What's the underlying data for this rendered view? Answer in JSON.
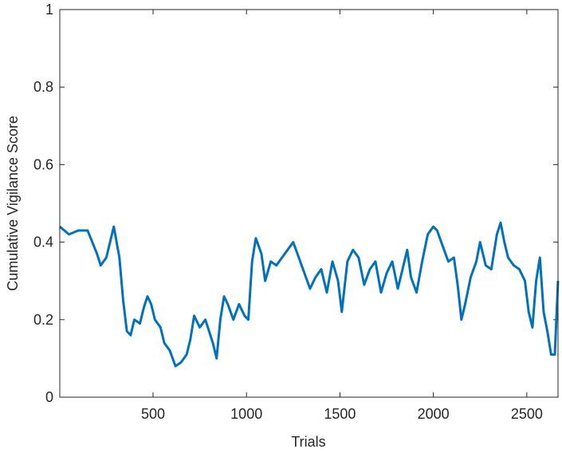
{
  "chart_data": {
    "type": "line",
    "xlabel": "Trials",
    "ylabel": "Cumulative Vigilance Score",
    "xlim": [
      1,
      2667
    ],
    "ylim": [
      0,
      1
    ],
    "xticks": [
      500,
      1000,
      1500,
      2000,
      2500
    ],
    "yticks": [
      0,
      0.2,
      0.4,
      0.6,
      0.8,
      1
    ],
    "grid": false,
    "x": [
      1,
      50,
      100,
      150,
      200,
      220,
      250,
      280,
      290,
      320,
      340,
      360,
      380,
      400,
      430,
      450,
      470,
      490,
      510,
      540,
      560,
      590,
      620,
      650,
      680,
      700,
      720,
      750,
      780,
      820,
      840,
      860,
      880,
      900,
      930,
      960,
      990,
      1010,
      1030,
      1050,
      1080,
      1100,
      1130,
      1160,
      1190,
      1220,
      1250,
      1280,
      1310,
      1340,
      1370,
      1400,
      1430,
      1460,
      1490,
      1510,
      1540,
      1570,
      1600,
      1630,
      1660,
      1690,
      1720,
      1750,
      1780,
      1810,
      1840,
      1860,
      1880,
      1910,
      1940,
      1970,
      2000,
      2020,
      2050,
      2080,
      2110,
      2130,
      2150,
      2170,
      2200,
      2230,
      2250,
      2280,
      2310,
      2340,
      2360,
      2380,
      2400,
      2430,
      2460,
      2490,
      2510,
      2530,
      2550,
      2570,
      2590,
      2610,
      2630,
      2650,
      2667
    ],
    "series": [
      {
        "name": "Cumulative Vigilance Score",
        "color": "#0072BD",
        "values": [
          0.44,
          0.42,
          0.43,
          0.43,
          0.37,
          0.34,
          0.36,
          0.42,
          0.44,
          0.36,
          0.25,
          0.17,
          0.16,
          0.2,
          0.19,
          0.23,
          0.26,
          0.24,
          0.2,
          0.18,
          0.14,
          0.12,
          0.08,
          0.09,
          0.11,
          0.15,
          0.21,
          0.18,
          0.2,
          0.14,
          0.1,
          0.2,
          0.26,
          0.24,
          0.2,
          0.24,
          0.21,
          0.2,
          0.35,
          0.41,
          0.37,
          0.3,
          0.35,
          0.34,
          0.36,
          0.38,
          0.4,
          0.36,
          0.32,
          0.28,
          0.31,
          0.33,
          0.27,
          0.35,
          0.3,
          0.22,
          0.35,
          0.38,
          0.36,
          0.29,
          0.33,
          0.35,
          0.27,
          0.32,
          0.35,
          0.28,
          0.34,
          0.38,
          0.31,
          0.27,
          0.35,
          0.42,
          0.44,
          0.43,
          0.39,
          0.35,
          0.36,
          0.29,
          0.2,
          0.24,
          0.31,
          0.35,
          0.4,
          0.34,
          0.33,
          0.42,
          0.45,
          0.4,
          0.36,
          0.34,
          0.33,
          0.3,
          0.22,
          0.18,
          0.3,
          0.36,
          0.22,
          0.17,
          0.11,
          0.11,
          0.3
        ]
      }
    ]
  }
}
